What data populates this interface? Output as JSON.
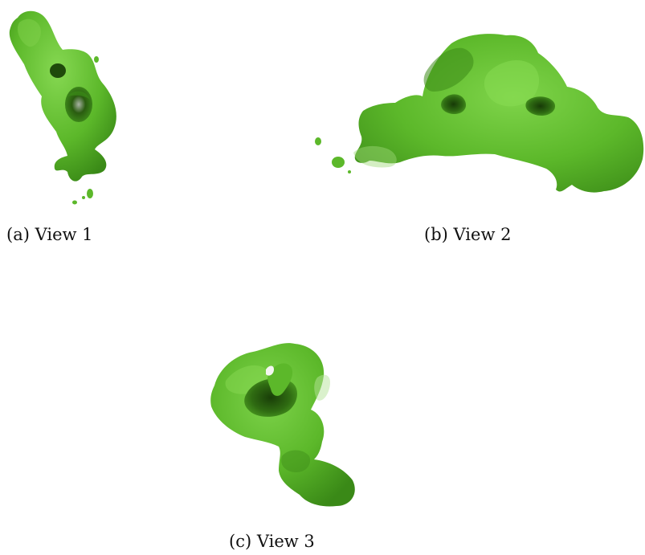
{
  "figure": {
    "panels": [
      {
        "caption": "(a) View 1",
        "subject": "green-3d-volume-render"
      },
      {
        "caption": "(b) View 2",
        "subject": "green-3d-volume-render"
      },
      {
        "caption": "(c) View 3",
        "subject": "green-3d-volume-render"
      }
    ],
    "colors": {
      "surface": "#5cb82a",
      "surface_light": "#7ed24a",
      "surface_dark": "#2f6c12",
      "cavity": "#1e4a0a",
      "background": "#ffffff",
      "caption_text": "#111111"
    }
  }
}
